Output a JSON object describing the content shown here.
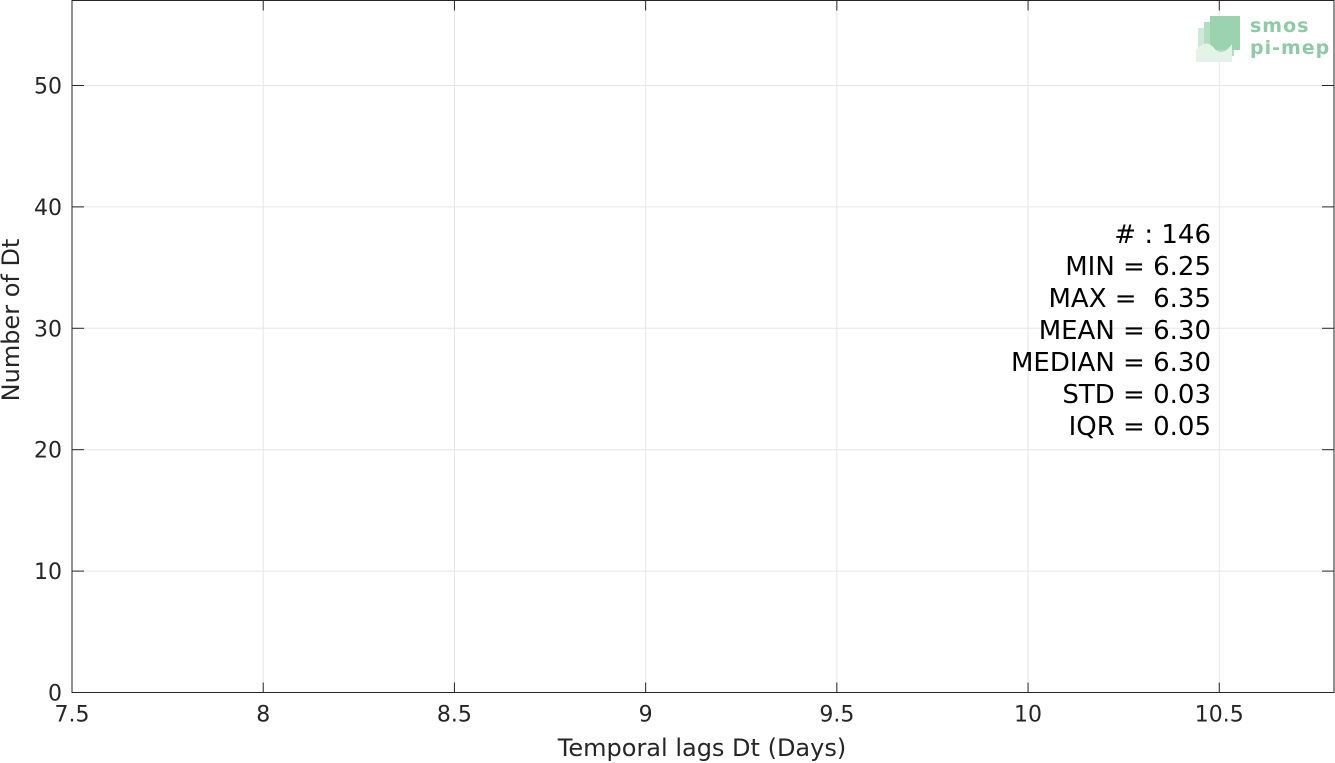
{
  "chart_data": {
    "type": "bar",
    "xlabel": "Temporal lags Dt (Days)",
    "ylabel": "Number of Dt",
    "xlim": [
      7.5,
      10.8
    ],
    "ylim": [
      0,
      57
    ],
    "xticks": [
      7.5,
      8,
      8.5,
      9,
      9.5,
      10,
      10.5
    ],
    "xtick_labels": [
      "7.5",
      "8",
      "8.5",
      "9",
      "9.5",
      "10",
      "10.5"
    ],
    "yticks": [
      0,
      10,
      20,
      30,
      40,
      50
    ],
    "ytick_labels": [
      "0",
      "10",
      "20",
      "30",
      "40",
      "50"
    ],
    "grid": true,
    "values": [],
    "stats": [
      "# : 146",
      "MIN = 6.25",
      "MAX =  6.35",
      "MEAN = 6.30",
      "MEDIAN = 6.30",
      "STD = 0.03",
      "IQR = 0.05"
    ],
    "stats_placement": "right"
  },
  "logo": {
    "line1": "smos",
    "line2": "pi-mep",
    "color": "#8fcaa6",
    "placement": "top-right"
  }
}
